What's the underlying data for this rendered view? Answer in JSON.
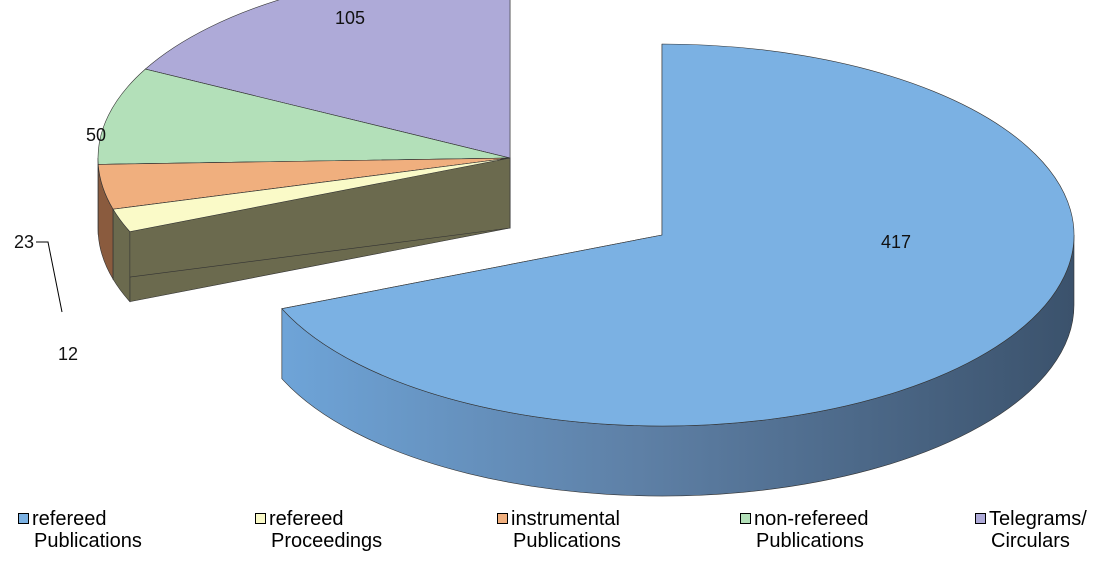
{
  "chart_data": {
    "type": "pie",
    "title": "",
    "slices": [
      {
        "label": "refereed Publications",
        "label_lines": [
          "refereed",
          "Publications"
        ],
        "value": 417,
        "data_label": "417",
        "color": "#7BB1E3",
        "side": "#3F5977"
      },
      {
        "label": "refereed Proceedings",
        "label_lines": [
          "refereed",
          "Proceedings"
        ],
        "value": 12,
        "data_label": "12",
        "color": "#FAFAC8",
        "side": "#6B6A4E"
      },
      {
        "label": "instrumental Publications",
        "label_lines": [
          "instrumental",
          "Publications"
        ],
        "value": 23,
        "data_label": "23",
        "color": "#F0AF7E",
        "side": "#8A5B3E"
      },
      {
        "label": "non-refereed Publications",
        "label_lines": [
          "non-refereed",
          "Publications"
        ],
        "value": 50,
        "data_label": "50",
        "color": "#B3E0B9",
        "side": "#3F6048"
      },
      {
        "label": "Telegrams/ Circulars",
        "label_lines": [
          "Telegrams/",
          "Circulars"
        ],
        "value": 105,
        "data_label": "105",
        "color": "#AEAAD8",
        "side": "#45476B"
      }
    ],
    "legend_position": "bottom",
    "style": "3d-exploded"
  }
}
